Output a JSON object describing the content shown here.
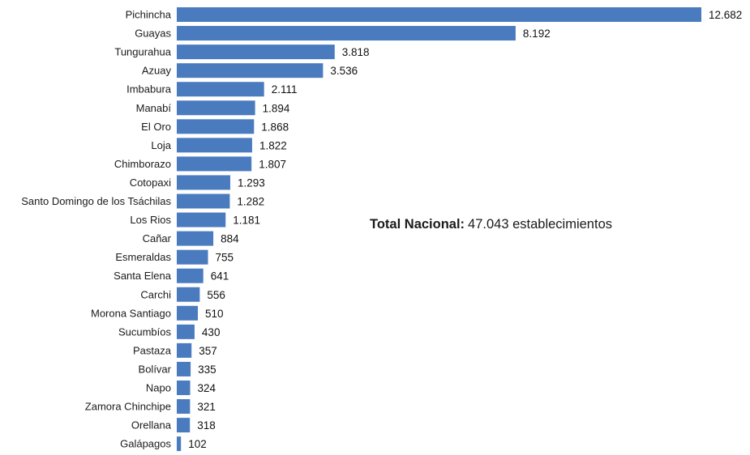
{
  "chart_data": {
    "type": "bar",
    "orientation": "horizontal",
    "categories": [
      "Pichincha",
      "Guayas",
      "Tungurahua",
      "Azuay",
      "Imbabura",
      "Manabí",
      "El Oro",
      "Loja",
      "Chimborazo",
      "Cotopaxi",
      "Santo Domingo de los Tsáchilas",
      "Los Rios",
      "Cañar",
      "Esmeraldas",
      "Santa Elena",
      "Carchi",
      "Morona Santiago",
      "Sucumbíos",
      "Pastaza",
      "Bolívar",
      "Napo",
      "Zamora Chinchipe",
      "Orellana",
      "Galápagos"
    ],
    "values": [
      12682,
      8192,
      3818,
      3536,
      2111,
      1894,
      1868,
      1822,
      1807,
      1293,
      1282,
      1181,
      884,
      755,
      641,
      556,
      510,
      430,
      357,
      335,
      324,
      321,
      318,
      102
    ],
    "value_labels": [
      "12.682",
      "8.192",
      "3.818",
      "3.536",
      "2.111",
      "1.894",
      "1.868",
      "1.822",
      "1.807",
      "1.293",
      "1.282",
      "1.181",
      "884",
      "755",
      "641",
      "556",
      "510",
      "430",
      "357",
      "335",
      "324",
      "321",
      "318",
      "102"
    ],
    "bar_color": "#4a7bbf",
    "grid": false,
    "legend": "none",
    "xlim": [
      0,
      12682
    ]
  },
  "annotation": {
    "label": "Total Nacional:",
    "value": "47.043 establecimientos"
  }
}
